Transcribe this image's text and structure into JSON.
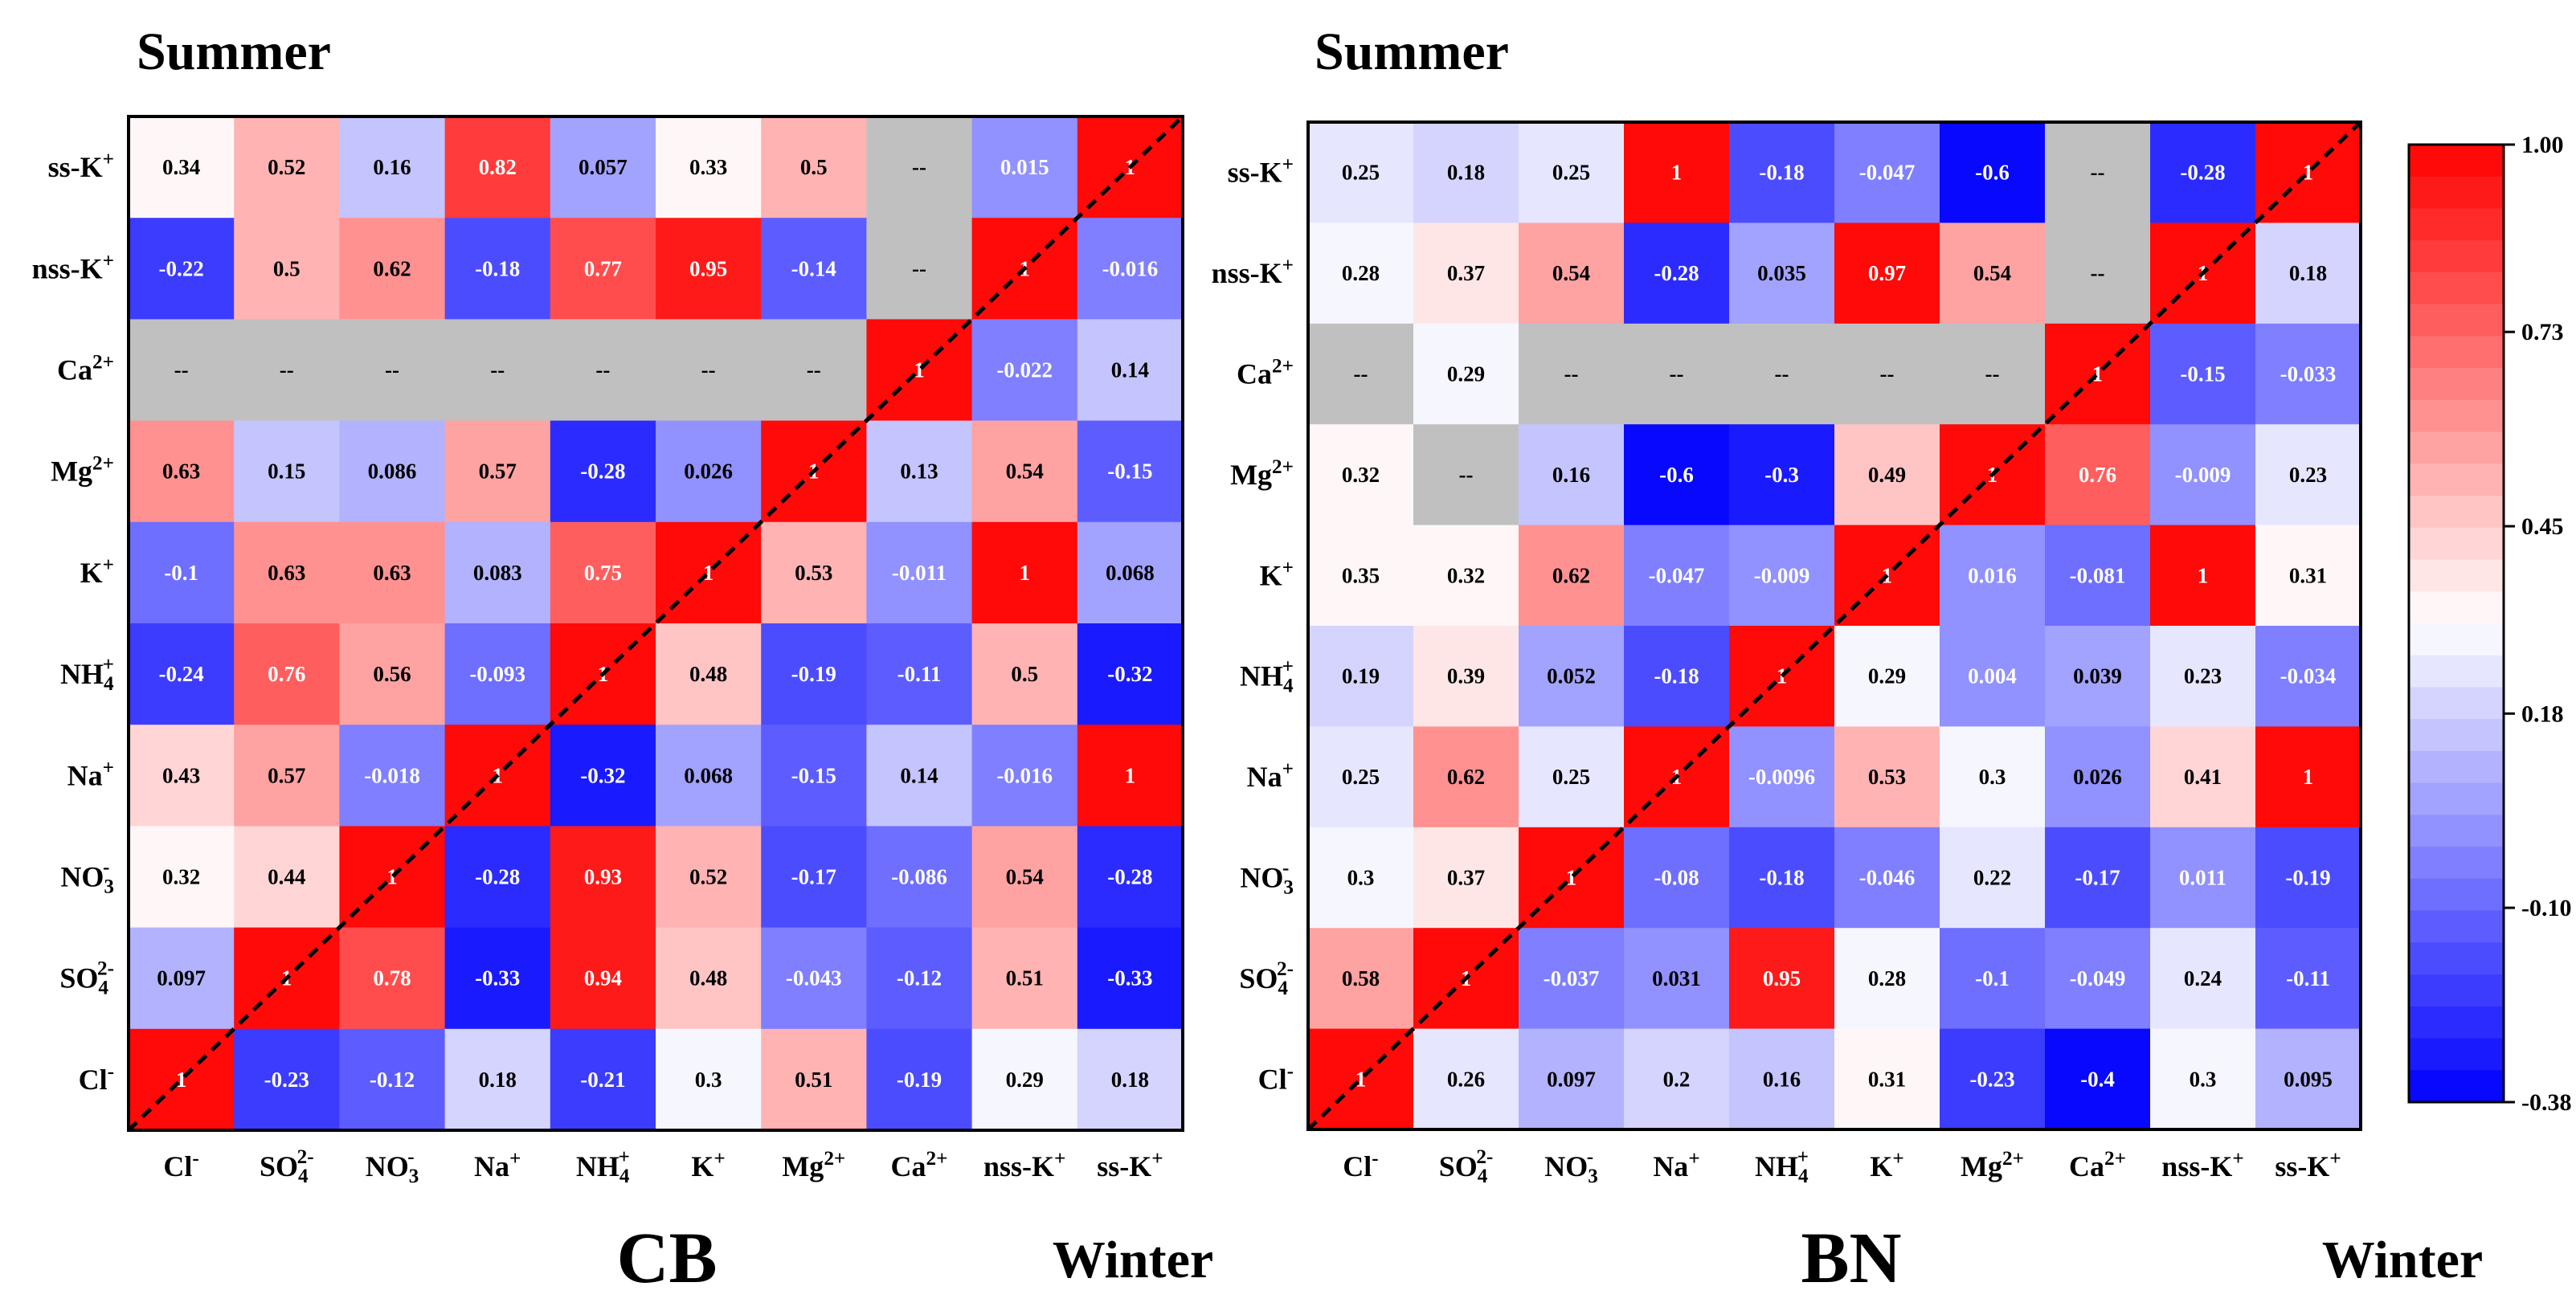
{
  "chart_data": [
    {
      "type": "heatmap",
      "top_label": "Summer",
      "panel_label": "CB",
      "corner_label": "Winter",
      "x_categories": [
        "Cl-",
        "SO4 2-",
        "NO3 -",
        "Na+",
        "NH4 +",
        "K+",
        "Mg2+",
        "Ca2+",
        "nss-K+",
        "ss-K+"
      ],
      "y_categories_top_to_bottom": [
        "ss-K+",
        "nss-K+",
        "Ca2+",
        "Mg2+",
        "K+",
        "NH4 +",
        "Na+",
        "NO3 -",
        "SO4 2-",
        "Cl-"
      ],
      "missing_label": "--",
      "values_top_to_bottom": [
        [
          "0.34",
          "0.52",
          "0.16",
          "0.82",
          "0.057",
          "0.33",
          "0.5",
          "--",
          "0.015",
          "1"
        ],
        [
          "-0.22",
          "0.5",
          "0.62",
          "-0.18",
          "0.77",
          "0.95",
          "-0.14",
          "--",
          "1",
          "-0.016"
        ],
        [
          "--",
          "--",
          "--",
          "--",
          "--",
          "--",
          "--",
          "1",
          "-0.022",
          "0.14"
        ],
        [
          "0.63",
          "0.15",
          "0.086",
          "0.57",
          "-0.28",
          "0.026",
          "1",
          "0.13",
          "0.54",
          "-0.15"
        ],
        [
          "-0.1",
          "0.63",
          "0.63",
          "0.083",
          "0.75",
          "1",
          "0.53",
          "-0.011",
          "1",
          "0.068"
        ],
        [
          "-0.24",
          "0.76",
          "0.56",
          "-0.093",
          "1",
          "0.48",
          "-0.19",
          "-0.11",
          "0.5",
          "-0.32"
        ],
        [
          "0.43",
          "0.57",
          "-0.018",
          "1",
          "-0.32",
          "0.068",
          "-0.15",
          "0.14",
          "-0.016",
          "1"
        ],
        [
          "0.32",
          "0.44",
          "1",
          "-0.28",
          "0.93",
          "0.52",
          "-0.17",
          "-0.086",
          "0.54",
          "-0.28"
        ],
        [
          "0.097",
          "1",
          "0.78",
          "-0.33",
          "0.94",
          "0.48",
          "-0.043",
          "-0.12",
          "0.51",
          "-0.33"
        ],
        [
          "1",
          "-0.23",
          "-0.12",
          "0.18",
          "-0.21",
          "0.3",
          "0.51",
          "-0.19",
          "0.29",
          "0.18"
        ]
      ]
    },
    {
      "type": "heatmap",
      "top_label": "Summer",
      "panel_label": "BN",
      "corner_label": "Winter",
      "x_categories": [
        "Cl-",
        "SO4 2-",
        "NO3 -",
        "Na+",
        "NH4 +",
        "K+",
        "Mg2+",
        "Ca2+",
        "nss-K+",
        "ss-K+"
      ],
      "y_categories_top_to_bottom": [
        "ss-K+",
        "nss-K+",
        "Ca2+",
        "Mg2+",
        "K+",
        "NH4 +",
        "Na+",
        "NO3 -",
        "SO4 2-",
        "Cl-"
      ],
      "missing_label": "--",
      "values_top_to_bottom": [
        [
          "0.25",
          "0.18",
          "0.25",
          "1",
          "-0.18",
          "-0.047",
          "-0.6",
          "--",
          "-0.28",
          "1"
        ],
        [
          "0.28",
          "0.37",
          "0.54",
          "-0.28",
          "0.035",
          "0.97",
          "0.54",
          "--",
          "1",
          "0.18"
        ],
        [
          "--",
          "0.29",
          "--",
          "--",
          "--",
          "--",
          "--",
          "1",
          "-0.15",
          "-0.033"
        ],
        [
          "0.32",
          "--",
          "0.16",
          "-0.6",
          "-0.3",
          "0.49",
          "1",
          "0.76",
          "-0.009",
          "0.23"
        ],
        [
          "0.35",
          "0.32",
          "0.62",
          "-0.047",
          "-0.009",
          "1",
          "0.016",
          "-0.081",
          "1",
          "0.31"
        ],
        [
          "0.19",
          "0.39",
          "0.052",
          "-0.18",
          "1",
          "0.29",
          "0.004",
          "0.039",
          "0.23",
          "-0.034"
        ],
        [
          "0.25",
          "0.62",
          "0.25",
          "1",
          "-0.0096",
          "0.53",
          "0.3",
          "0.026",
          "0.41",
          "1"
        ],
        [
          "0.3",
          "0.37",
          "1",
          "-0.08",
          "-0.18",
          "-0.046",
          "0.22",
          "-0.17",
          "0.011",
          "-0.19"
        ],
        [
          "0.58",
          "1",
          "-0.037",
          "0.031",
          "0.95",
          "0.28",
          "-0.1",
          "-0.049",
          "0.24",
          "-0.11"
        ],
        [
          "1",
          "0.26",
          "0.097",
          "0.2",
          "0.16",
          "0.31",
          "-0.23",
          "-0.4",
          "0.3",
          "0.095"
        ]
      ]
    }
  ],
  "colorbar": {
    "min": -0.38,
    "max": 1.0,
    "tick_labels": [
      "1.00",
      "0.73",
      "0.45",
      "0.18",
      "-0.10",
      "-0.38"
    ],
    "tick_values": [
      1.0,
      0.73,
      0.45,
      0.18,
      -0.1,
      -0.38
    ],
    "steps": 30
  },
  "colors": {
    "high": "#ff0000",
    "mid": "#ffffff",
    "low": "#0000ff",
    "missing": "#c0c0c0",
    "diagonal_line": "#000000"
  }
}
